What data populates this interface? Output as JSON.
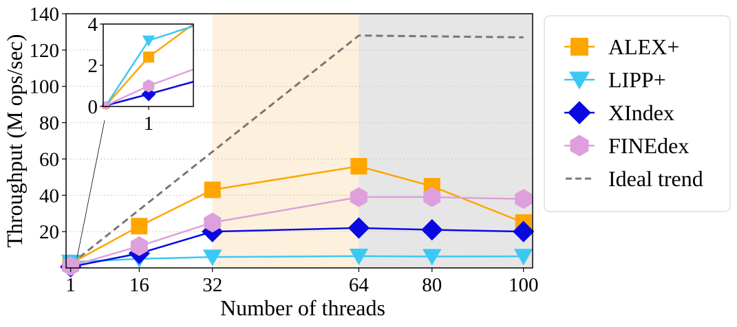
{
  "chart_data": {
    "type": "line",
    "xlabel": "Number of threads",
    "ylabel": "Throughput (M ops/sec)",
    "x": [
      1,
      16,
      32,
      64,
      80,
      100
    ],
    "xticks": [
      "1",
      "16",
      "32",
      "64",
      "80",
      "100"
    ],
    "xlim": [
      0,
      102
    ],
    "ylim": [
      0,
      140
    ],
    "yticks": [
      "20",
      "40",
      "60",
      "80",
      "100",
      "120",
      "140"
    ],
    "grid": "horizontal-dotted",
    "shaded_regions": [
      {
        "from": 32,
        "to": 64,
        "color": "#fdf0dc"
      },
      {
        "from": 64,
        "to": 102,
        "color": "#e6e6e6"
      }
    ],
    "series": [
      {
        "name": "ALEX+",
        "color": "#ffa500",
        "marker": "square",
        "values": [
          2.4,
          23,
          43,
          56,
          45,
          25
        ]
      },
      {
        "name": "LIPP+",
        "color": "#3bc8f5",
        "marker": "triangle-down",
        "values": [
          3.2,
          5,
          6,
          6.5,
          6.3,
          6.4
        ]
      },
      {
        "name": "XIndex",
        "color": "#0a0ae0",
        "marker": "diamond",
        "values": [
          0.6,
          8,
          20,
          22,
          21,
          20
        ]
      },
      {
        "name": "FINEdex",
        "color": "#dda0dd",
        "marker": "hexagon",
        "values": [
          1,
          12,
          25,
          39,
          39,
          38
        ]
      }
    ],
    "ideal": {
      "name": "Ideal trend",
      "color": "#777777",
      "style": "dashed",
      "x": [
        1,
        64,
        100
      ],
      "values": [
        2,
        128,
        127
      ]
    },
    "inset": {
      "xticks": [
        "1"
      ],
      "yticks": [
        "0",
        "2",
        "4"
      ],
      "ylim": [
        0,
        4
      ],
      "x_at_tick": 1,
      "values": {
        "ALEX+": 2.4,
        "LIPP+": 3.2,
        "XIndex": 0.6,
        "FINEdex": 1
      }
    },
    "legend": {
      "placement": "outside-right",
      "entries": [
        "ALEX+",
        "LIPP+",
        "XIndex",
        "FINEdex",
        "Ideal trend"
      ]
    }
  }
}
